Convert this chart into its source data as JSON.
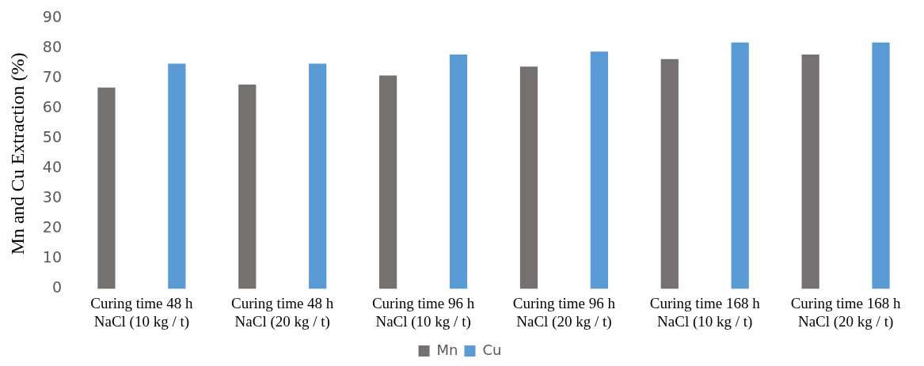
{
  "chart_data": {
    "type": "bar",
    "ylabel": "Mn and Cu Extraction (%)",
    "categories": [
      "Curing time 48 h\nNaCl (10 kg / t)",
      "Curing time 48 h\nNaCl (20 kg / t)",
      "Curing time 96 h\nNaCl (10 kg / t)",
      "Curing time 96 h\nNaCl (20 kg / t)",
      "Curing time 168 h\nNaCl (10 kg / t)",
      "Curing time 168 h\nNaCl (20 kg / t)"
    ],
    "series": [
      {
        "name": "Mn",
        "color": "#767171",
        "values": [
          67,
          68,
          71,
          74,
          76.5,
          78
        ]
      },
      {
        "name": "Cu",
        "color": "#5b9bd5",
        "values": [
          75,
          75,
          78,
          79,
          82,
          82
        ]
      }
    ],
    "ylim": [
      0,
      90
    ],
    "yticks": [
      0,
      10,
      20,
      30,
      40,
      50,
      60,
      70,
      80,
      90
    ],
    "grid": false,
    "legend": "bottom"
  }
}
